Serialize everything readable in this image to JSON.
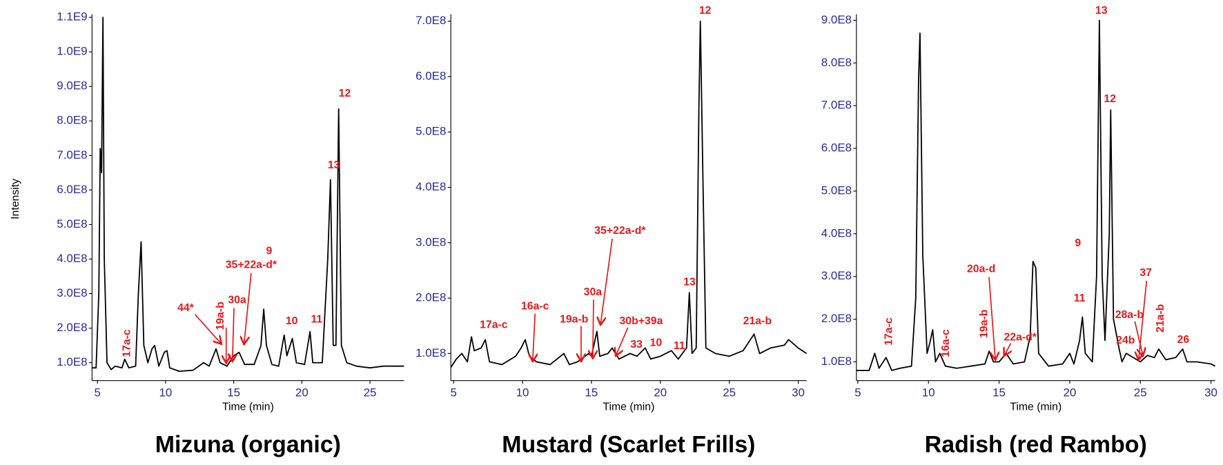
{
  "chart_data": [
    {
      "type": "line",
      "title": "Mizuna (organic)",
      "xlabel": "Time (min)",
      "ylabel": "Intensity",
      "color": "#000000",
      "x": [
        4.6,
        4.9,
        5.1,
        5.2,
        5.3,
        5.4,
        5.5,
        5.7,
        6.0,
        6.3,
        6.8,
        7.0,
        7.3,
        7.8,
        8.0,
        8.2,
        8.4,
        8.7,
        9.0,
        9.2,
        9.5,
        9.9,
        10.1,
        10.3,
        11,
        12,
        12.8,
        13.2,
        13.7,
        14,
        14.5,
        15.0,
        15.4,
        15.8,
        16.5,
        17.0,
        17.2,
        17.4,
        17.8,
        18.3,
        18.7,
        18.9,
        19.3,
        19.6,
        20.2,
        20.6,
        20.8,
        21.5,
        21.9,
        22.1,
        22.3,
        22.5,
        22.7,
        22.9,
        23.3,
        24,
        25,
        26,
        27,
        27.5
      ],
      "values": [
        85000000.0,
        85000000.0,
        300000000.0,
        720000000.0,
        650000000.0,
        1100000000.0,
        400000000.0,
        100000000.0,
        80000000.0,
        90000000.0,
        85000000.0,
        110000000.0,
        85000000.0,
        90000000.0,
        300000000.0,
        450000000.0,
        150000000.0,
        100000000.0,
        140000000.0,
        150000000.0,
        90000000.0,
        130000000.0,
        135000000.0,
        85000000.0,
        75000000.0,
        78000000.0,
        100000000.0,
        90000000.0,
        140000000.0,
        100000000.0,
        90000000.0,
        120000000.0,
        130000000.0,
        95000000.0,
        95000000.0,
        150000000.0,
        255000000.0,
        150000000.0,
        95000000.0,
        90000000.0,
        180000000.0,
        120000000.0,
        170000000.0,
        100000000.0,
        95000000.0,
        190000000.0,
        100000000.0,
        100000000.0,
        400000000.0,
        630000000.0,
        150000000.0,
        150000000.0,
        835000000.0,
        150000000.0,
        100000000.0,
        90000000.0,
        85000000.0,
        90000000.0,
        90000000.0,
        90000000.0
      ],
      "xlim": [
        4.6,
        27.5
      ],
      "ylim": [
        48000000.0,
        1100000000.0
      ],
      "xticks": [
        5,
        10,
        15,
        20,
        25
      ],
      "yticks": [
        {
          "value": 100000000.0,
          "label": "1.0E8"
        },
        {
          "value": 200000000.0,
          "label": "2.0E8"
        },
        {
          "value": 300000000.0,
          "label": "3.0E8"
        },
        {
          "value": 400000000.0,
          "label": "4.0E8"
        },
        {
          "value": 500000000.0,
          "label": "5.0E8"
        },
        {
          "value": 600000000.0,
          "label": "6.0E8"
        },
        {
          "value": 700000000.0,
          "label": "7.0E8"
        },
        {
          "value": 800000000.0,
          "label": "8.0E8"
        },
        {
          "value": 900000000.0,
          "label": "9.0E8"
        },
        {
          "value": 1000000000.0,
          "label": "1.0E9"
        },
        {
          "value": 1100000000.0,
          "label": "1.1E9"
        }
      ],
      "annotations": [
        "17a-c",
        "44*",
        "19a-b",
        "30a",
        "35+22a-d*",
        "9",
        "10",
        "11",
        "13",
        "12"
      ]
    },
    {
      "type": "line",
      "title": "Mustard (Scarlet Frills)",
      "xlabel": "Time (min)",
      "color": "#000000",
      "x": [
        4.8,
        5.2,
        5.6,
        6.0,
        6.3,
        6.5,
        7.0,
        7.3,
        7.6,
        8.5,
        9.5,
        9.9,
        10.2,
        10.5,
        11,
        12,
        13,
        13.4,
        14,
        14.8,
        15.0,
        15.4,
        15.6,
        16.2,
        16.5,
        17,
        17.8,
        18.3,
        18.9,
        19.3,
        20,
        20.8,
        21.3,
        21.9,
        22.1,
        22.3,
        22.6,
        22.8,
        22.9,
        23.1,
        23.3,
        24,
        25,
        26,
        26.8,
        27.2,
        28,
        29,
        29.3,
        30,
        30.6
      ],
      "values": [
        75000000.0,
        90000000.0,
        100000000.0,
        85000000.0,
        130000000.0,
        105000000.0,
        110000000.0,
        125000000.0,
        85000000.0,
        80000000.0,
        95000000.0,
        110000000.0,
        125000000.0,
        95000000.0,
        85000000.0,
        80000000.0,
        100000000.0,
        80000000.0,
        85000000.0,
        100000000.0,
        95000000.0,
        140000000.0,
        95000000.0,
        100000000.0,
        110000000.0,
        90000000.0,
        100000000.0,
        95000000.0,
        110000000.0,
        90000000.0,
        95000000.0,
        105000000.0,
        90000000.0,
        110000000.0,
        210000000.0,
        100000000.0,
        110000000.0,
        550000000.0,
        700000000.0,
        400000000.0,
        110000000.0,
        100000000.0,
        95000000.0,
        105000000.0,
        135000000.0,
        100000000.0,
        110000000.0,
        115000000.0,
        125000000.0,
        110000000.0,
        100000000.0
      ],
      "xlim": [
        4.8,
        30.6
      ],
      "ylim": [
        51000000.0,
        707000000.0
      ],
      "xticks": [
        5,
        10,
        15,
        20,
        25,
        30
      ],
      "yticks": [
        {
          "value": 100000000.0,
          "label": "1.0E8"
        },
        {
          "value": 200000000.0,
          "label": "2.0E8"
        },
        {
          "value": 300000000.0,
          "label": "3.0E8"
        },
        {
          "value": 400000000.0,
          "label": "4.0E8"
        },
        {
          "value": 500000000.0,
          "label": "5.0E8"
        },
        {
          "value": 600000000.0,
          "label": "6.0E8"
        },
        {
          "value": 700000000.0,
          "label": "7.0E8"
        }
      ],
      "annotations": [
        "17a-c",
        "16a-c",
        "19a-b",
        "30a",
        "35+22a-d*",
        "30b+39a",
        "33",
        "10",
        "11",
        "13",
        "12",
        "21a-b"
      ]
    },
    {
      "type": "line",
      "title": "Radish (red Rambo)",
      "xlabel": "Time (min)",
      "color": "#000000",
      "x": [
        4.9,
        5.8,
        6.2,
        6.5,
        7.0,
        7.4,
        8.0,
        8.8,
        9.1,
        9.3,
        9.4,
        9.6,
        9.9,
        10.1,
        10.3,
        10.5,
        10.8,
        11.2,
        12,
        13,
        14,
        14.3,
        14.6,
        15,
        15.5,
        16,
        16.8,
        17.2,
        17.4,
        17.6,
        17.8,
        18.5,
        19.5,
        20,
        20.3,
        20.7,
        20.9,
        21.1,
        21.6,
        21.9,
        22.1,
        22.3,
        22.5,
        22.8,
        22.9,
        23.1,
        23.5,
        23.7,
        24,
        24.5,
        25,
        25.5,
        26,
        26.3,
        26.8,
        27.5,
        28,
        28.3,
        29,
        30,
        30.3
      ],
      "values": [
        80000000.0,
        80000000.0,
        120000000.0,
        85000000.0,
        110000000.0,
        80000000.0,
        85000000.0,
        90000000.0,
        250000000.0,
        760000000.0,
        870000000.0,
        350000000.0,
        120000000.0,
        145000000.0,
        175000000.0,
        100000000.0,
        120000000.0,
        90000000.0,
        85000000.0,
        90000000.0,
        95000000.0,
        125000000.0,
        100000000.0,
        100000000.0,
        120000000.0,
        95000000.0,
        100000000.0,
        160000000.0,
        335000000.0,
        320000000.0,
        120000000.0,
        90000000.0,
        95000000.0,
        120000000.0,
        95000000.0,
        150000000.0,
        205000000.0,
        120000000.0,
        100000000.0,
        300000000.0,
        900000000.0,
        300000000.0,
        150000000.0,
        400000000.0,
        690000000.0,
        200000000.0,
        130000000.0,
        100000000.0,
        120000000.0,
        110000000.0,
        100000000.0,
        115000000.0,
        110000000.0,
        130000000.0,
        105000000.0,
        110000000.0,
        130000000.0,
        100000000.0,
        100000000.0,
        95000000.0,
        90000000.0
      ],
      "xlim": [
        4.9,
        30.3
      ],
      "ylim": [
        56000000.0,
        907000000.0
      ],
      "xticks": [
        5,
        10,
        15,
        20,
        25,
        30
      ],
      "yticks": [
        {
          "value": 100000000.0,
          "label": "1.0E8"
        },
        {
          "value": 200000000.0,
          "label": "2.0E8"
        },
        {
          "value": 300000000.0,
          "label": "3.0E8"
        },
        {
          "value": 400000000.0,
          "label": "4.0E8"
        },
        {
          "value": 500000000.0,
          "label": "5.0E8"
        },
        {
          "value": 600000000.0,
          "label": "6.0E8"
        },
        {
          "value": 700000000.0,
          "label": "7.0E8"
        },
        {
          "value": 800000000.0,
          "label": "8.0E8"
        },
        {
          "value": 900000000.0,
          "label": "9.0E8"
        }
      ],
      "annotations": [
        "17a-c",
        "16a-c",
        "19a-b",
        "20a-d",
        "22a-d*",
        "9",
        "11",
        "13",
        "12",
        "37",
        "28a-b",
        "24b",
        "21a-b",
        "26"
      ]
    }
  ]
}
